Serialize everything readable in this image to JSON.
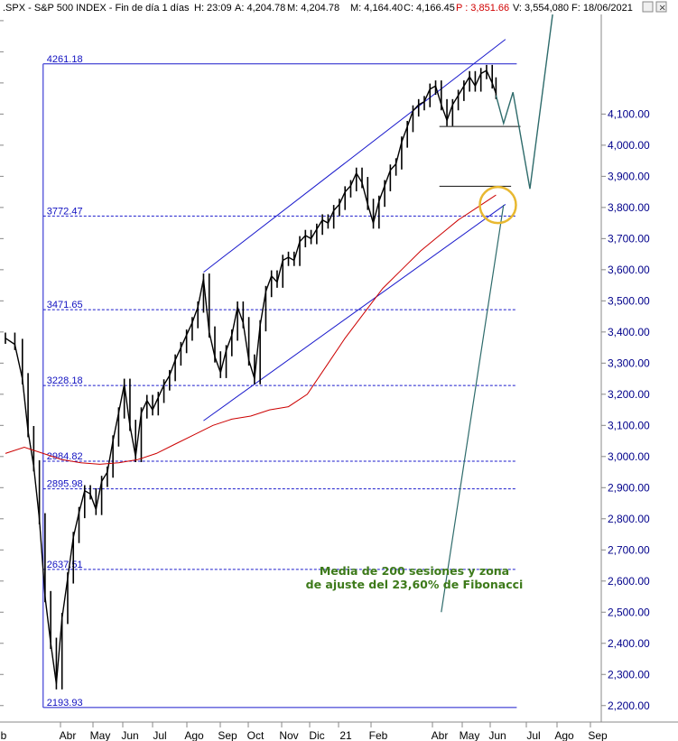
{
  "header": {
    "symbol": ".SPX - S&P 500 INDEX - Fin de día 1 días",
    "h": "H: 23:09",
    "a": "A: 4,204.78",
    "m": "M: 4,204.78",
    "min": "M: 4,164.40",
    "c": "C: 4,166.45",
    "p": "P : 3,851.66",
    "v": "V: 3,554,080",
    "f": "F: 18/06/2021"
  },
  "colors": {
    "price": "#000000",
    "ma200": "#cc0000",
    "channel": "#1a1acc",
    "fib": "#1a1acc",
    "projection": "#2e6b6b",
    "circle": "#e8b830",
    "annotation": "#3d7a1a"
  },
  "chart_data": {
    "type": "line",
    "title": "",
    "xlabel": "",
    "ylabel": "",
    "ylim": [
      2150,
      4420
    ],
    "grid": false,
    "x_tick_labels": [
      "b",
      "Abr",
      "May",
      "Jun",
      "Jul",
      "Ago",
      "Sep",
      "Oct",
      "Nov",
      "Dic",
      "21",
      "Feb",
      "Abr",
      "May",
      "Jun",
      "Jul",
      "Ago",
      "Sep"
    ],
    "y_tick_labels": [
      "4,100.00",
      "4,000.00",
      "3,900.00",
      "3,800.00",
      "3,700.00",
      "3,600.00",
      "3,500.00",
      "3,400.00",
      "3,300.00",
      "3,200.00",
      "3,100.00",
      "3,000.00",
      "2,900.00",
      "2,800.00",
      "2,700.00",
      "2,600.00",
      "2,500.00",
      "2,400.00",
      "2,300.00",
      "2,200.00"
    ],
    "y_ticks": [
      4100,
      4000,
      3900,
      3800,
      3700,
      3600,
      3500,
      3400,
      3300,
      3200,
      3100,
      3000,
      2900,
      2800,
      2700,
      2600,
      2500,
      2400,
      2300,
      2200
    ],
    "fib_levels": [
      {
        "label": "4261.18",
        "value": 4261.18
      },
      {
        "label": "3772.47",
        "value": 3772.47
      },
      {
        "label": "3471.65",
        "value": 3471.65
      },
      {
        "label": "3228.18",
        "value": 3228.18
      },
      {
        "label": "2984.82",
        "value": 2984.82
      },
      {
        "label": "2895.98",
        "value": 2895.98
      },
      {
        "label": "2637.51",
        "value": 2637.51
      },
      {
        "label": "2193.93",
        "value": 2193.93
      }
    ],
    "series": [
      {
        "name": "",
        "values": [
          [
            0,
            3380
          ],
          [
            0.5,
            3360
          ],
          [
            0.9,
            3250
          ],
          [
            1.2,
            3080
          ],
          [
            1.5,
            2970
          ],
          [
            1.8,
            2800
          ],
          [
            2.1,
            2550
          ],
          [
            2.4,
            2400
          ],
          [
            2.7,
            2270
          ],
          [
            3.0,
            2480
          ],
          [
            3.3,
            2610
          ],
          [
            3.6,
            2740
          ],
          [
            3.9,
            2820
          ],
          [
            4.2,
            2890
          ],
          [
            4.5,
            2880
          ],
          [
            4.8,
            2830
          ],
          [
            5.1,
            2920
          ],
          [
            5.4,
            2950
          ],
          [
            5.7,
            3050
          ],
          [
            6.0,
            3140
          ],
          [
            6.3,
            3232
          ],
          [
            6.6,
            3100
          ],
          [
            6.9,
            3000
          ],
          [
            7.2,
            3140
          ],
          [
            7.5,
            3180
          ],
          [
            7.8,
            3150
          ],
          [
            8.1,
            3190
          ],
          [
            8.4,
            3230
          ],
          [
            8.7,
            3260
          ],
          [
            9.0,
            3310
          ],
          [
            9.3,
            3350
          ],
          [
            9.6,
            3390
          ],
          [
            9.9,
            3430
          ],
          [
            10.2,
            3480
          ],
          [
            10.5,
            3570
          ],
          [
            10.8,
            3400
          ],
          [
            11.1,
            3320
          ],
          [
            11.4,
            3270
          ],
          [
            11.7,
            3340
          ],
          [
            12.0,
            3390
          ],
          [
            12.3,
            3480
          ],
          [
            12.6,
            3430
          ],
          [
            12.9,
            3310
          ],
          [
            13.2,
            3250
          ],
          [
            13.5,
            3420
          ],
          [
            13.8,
            3530
          ],
          [
            14.1,
            3580
          ],
          [
            14.4,
            3560
          ],
          [
            14.7,
            3630
          ],
          [
            15.0,
            3640
          ],
          [
            15.3,
            3630
          ],
          [
            15.6,
            3690
          ],
          [
            15.9,
            3710
          ],
          [
            16.2,
            3700
          ],
          [
            16.5,
            3730
          ],
          [
            16.8,
            3760
          ],
          [
            17.1,
            3750
          ],
          [
            17.4,
            3790
          ],
          [
            17.7,
            3810
          ],
          [
            18.0,
            3850
          ],
          [
            18.3,
            3870
          ],
          [
            18.6,
            3910
          ],
          [
            18.9,
            3880
          ],
          [
            19.2,
            3810
          ],
          [
            19.5,
            3750
          ],
          [
            19.8,
            3820
          ],
          [
            20.1,
            3870
          ],
          [
            20.4,
            3920
          ],
          [
            20.7,
            3940
          ],
          [
            21.0,
            4010
          ],
          [
            21.3,
            4060
          ],
          [
            21.6,
            4110
          ],
          [
            21.9,
            4130
          ],
          [
            22.2,
            4140
          ],
          [
            22.5,
            4180
          ],
          [
            22.8,
            4190
          ],
          [
            23.1,
            4130
          ],
          [
            23.4,
            4080
          ],
          [
            23.7,
            4130
          ],
          [
            24.0,
            4160
          ],
          [
            24.3,
            4190
          ],
          [
            24.6,
            4220
          ],
          [
            24.9,
            4190
          ],
          [
            25.2,
            4230
          ],
          [
            25.5,
            4240
          ],
          [
            25.8,
            4200
          ],
          [
            26.0,
            4166
          ]
        ]
      },
      {
        "name": "",
        "values": [
          [
            0,
            3010
          ],
          [
            1,
            3030
          ],
          [
            2,
            3010
          ],
          [
            3,
            2990
          ],
          [
            4,
            2980
          ],
          [
            5,
            2975
          ],
          [
            6,
            2980
          ],
          [
            7,
            2990
          ],
          [
            8,
            3010
          ],
          [
            9,
            3040
          ],
          [
            10,
            3070
          ],
          [
            11,
            3100
          ],
          [
            12,
            3120
          ],
          [
            13,
            3130
          ],
          [
            14,
            3150
          ],
          [
            15,
            3160
          ],
          [
            16,
            3200
          ],
          [
            17,
            3290
          ],
          [
            18,
            3380
          ],
          [
            19,
            3460
          ],
          [
            20,
            3540
          ],
          [
            21,
            3600
          ],
          [
            22,
            3660
          ],
          [
            23,
            3710
          ],
          [
            24,
            3760
          ],
          [
            25,
            3800
          ],
          [
            26,
            3840
          ]
        ]
      }
    ],
    "channel_lines": [
      {
        "from": [
          10.5,
          3592
        ],
        "to": [
          26.5,
          4340
        ]
      },
      {
        "from": [
          10.5,
          3115
        ],
        "to": [
          26.5,
          3810
        ]
      }
    ],
    "support_segments": [
      {
        "from": [
          23.0,
          4060
        ],
        "to": [
          27.3,
          4060
        ]
      },
      {
        "from": [
          23.0,
          3868
        ],
        "to": [
          26.8,
          3868
        ]
      }
    ],
    "projection_path": [
      [
        26.0,
        4160
      ],
      [
        26.4,
        4070
      ],
      [
        26.9,
        4170
      ],
      [
        27.8,
        3860
      ],
      [
        29.0,
        4420
      ]
    ],
    "annotation_arrow": {
      "from": [
        23.1,
        2500
      ],
      "to": [
        26.4,
        3808
      ]
    },
    "highlight_circle": {
      "x": 26.1,
      "y": 3808
    },
    "annotation": "Media de 200 sesiones y zona de ajuste del 23,60% de Fibonacci"
  }
}
